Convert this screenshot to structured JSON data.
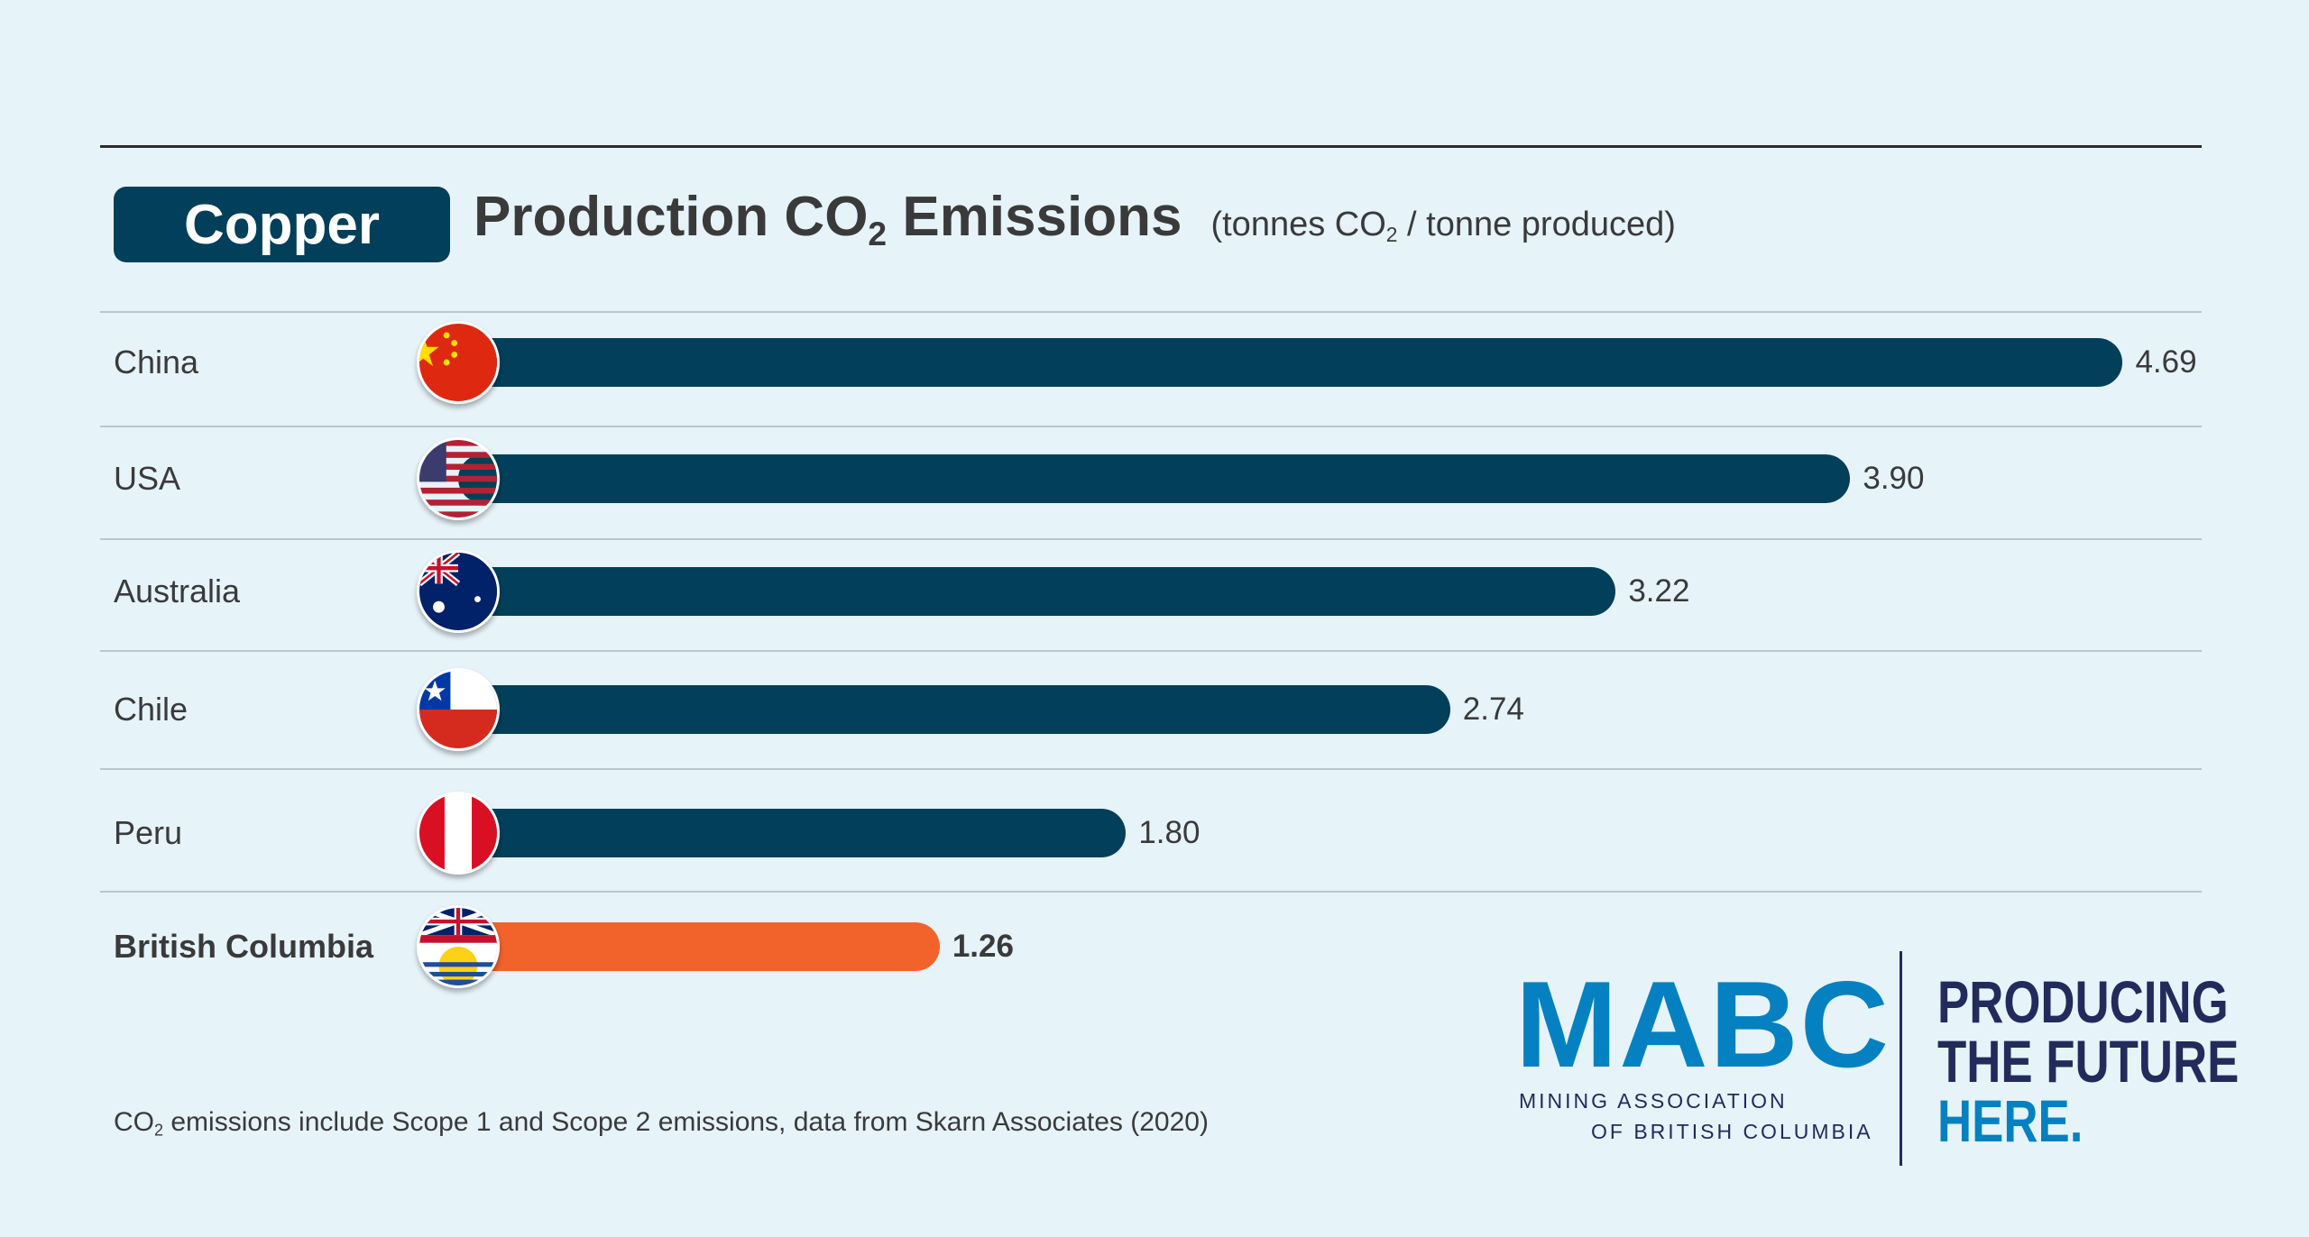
{
  "header": {
    "badge": "Copper",
    "title_pre": "Production CO",
    "title_sub": "2",
    "title_post": " Emissions",
    "units_pre": "(tonnes CO",
    "units_sub": "2",
    "units_post": " / tonne produced)"
  },
  "chart_data": {
    "type": "bar",
    "orientation": "horizontal",
    "title": "Copper Production CO2 Emissions",
    "ylabel": "",
    "xlabel": "tonnes CO2 / tonne produced",
    "categories": [
      "China",
      "USA",
      "Australia",
      "Chile",
      "Peru",
      "British Columbia"
    ],
    "values": [
      4.69,
      3.9,
      3.22,
      2.74,
      1.8,
      1.26
    ],
    "labels": [
      "4.69",
      "3.90",
      "3.22",
      "2.74",
      "1.80",
      "1.26"
    ],
    "flags": [
      "china-flag-icon",
      "usa-flag-icon",
      "australia-flag-icon",
      "chile-flag-icon",
      "peru-flag-icon",
      "bc-flag-icon"
    ],
    "colors": [
      "#023f5a",
      "#023f5a",
      "#023f5a",
      "#023f5a",
      "#023f5a",
      "#f2622b"
    ],
    "highlight": "British Columbia"
  },
  "footnote": {
    "pre": "CO",
    "sub": "2",
    "post": " emissions include Scope 1 and Scope 2 emissions, data from Skarn Associates (2020)"
  },
  "logo": {
    "mark": "MABC",
    "line1": "MINING ASSOCIATION",
    "line2": "OF BRITISH COLUMBIA",
    "tag1": "PRODUCING",
    "tag2": "THE FUTURE",
    "tag3": "HERE."
  }
}
